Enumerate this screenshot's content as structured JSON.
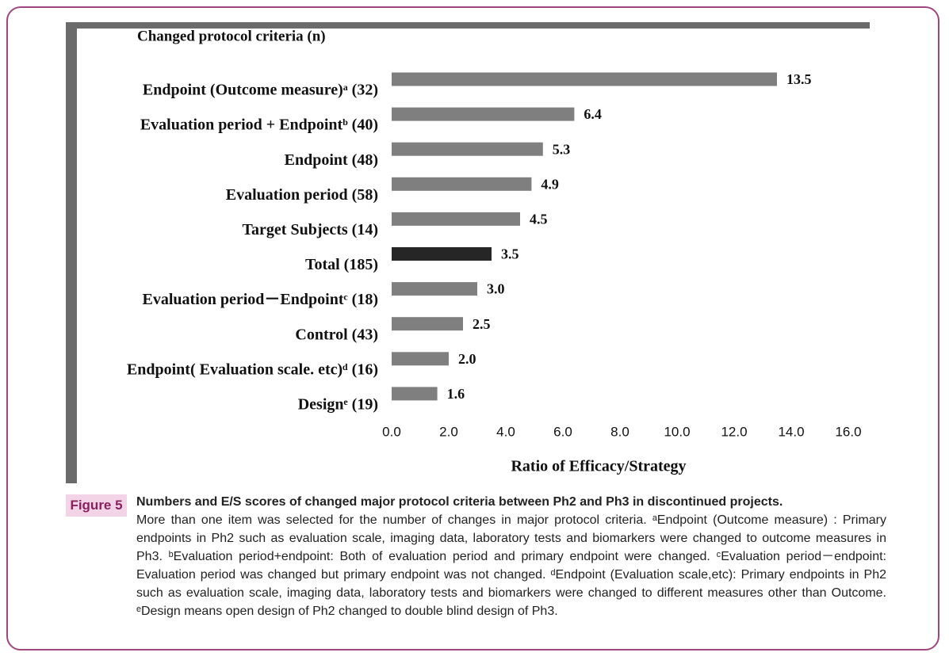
{
  "chart_data": {
    "type": "barh",
    "header": "Changed protocol criteria (n)",
    "xlabel": "Ratio of Efficacy/Strategy",
    "categories": [
      "Endpoint (Outcome measure)ᵃ (32)",
      "Evaluation period + Endpointᵇ (40)",
      "Endpoint (48)",
      "Evaluation period (58)",
      "Target Subjects (14)",
      "Total (185)",
      "Evaluation period－Endpointᶜ (18)",
      "Control (43)",
      "Endpoint( Evaluation scale. etc)ᵈ (16)",
      "Designᵉ (19)"
    ],
    "values": [
      13.5,
      6.4,
      5.3,
      4.9,
      4.5,
      3.5,
      3.0,
      2.5,
      2.0,
      1.6
    ],
    "value_labels": [
      "13.5",
      "6.4",
      "5.3",
      "4.9",
      "4.5",
      "3.5",
      "3.0",
      "2.5",
      "2.0",
      "1.6"
    ],
    "colors": [
      "#7f7f7f",
      "#7f7f7f",
      "#7f7f7f",
      "#7f7f7f",
      "#7f7f7f",
      "#262626",
      "#7f7f7f",
      "#7f7f7f",
      "#7f7f7f",
      "#7f7f7f"
    ],
    "xlim": [
      0,
      16
    ],
    "xticks": [
      {
        "value": 0,
        "label": "0.0"
      },
      {
        "value": 2,
        "label": "2.0"
      },
      {
        "value": 4,
        "label": "4.0"
      },
      {
        "value": 6,
        "label": "6.0"
      },
      {
        "value": 8,
        "label": "8.0"
      },
      {
        "value": 10,
        "label": "10.0"
      },
      {
        "value": 12,
        "label": "12.0"
      },
      {
        "value": 14,
        "label": "14.0"
      },
      {
        "value": 16,
        "label": "16.0"
      }
    ],
    "grid": false
  },
  "figure": {
    "label": "Figure 5",
    "title": "Numbers and E/S scores of changed major protocol criteria between Ph2 and Ph3 in discontinued projects.",
    "text": "More than one item was selected for the number of changes in major protocol criteria. ᵃEndpoint (Outcome measure) : Primary endpoints in Ph2 such as evaluation scale, imaging data, laboratory tests and biomarkers were changed to outcome measures in Ph3. ᵇEvaluation period+endpoint: Both of evaluation period and primary endpoint were changed. ᶜEvaluation period－endpoint: Evaluation period was changed but primary endpoint was not changed. ᵈEndpoint (Evaluation scale,etc): Primary endpoints in Ph2 such as evaluation scale, imaging data, laboratory tests and biomarkers were changed to different measures other than Outcome. ᵉDesign means open design of Ph2 changed to double blind design of Ph3."
  }
}
